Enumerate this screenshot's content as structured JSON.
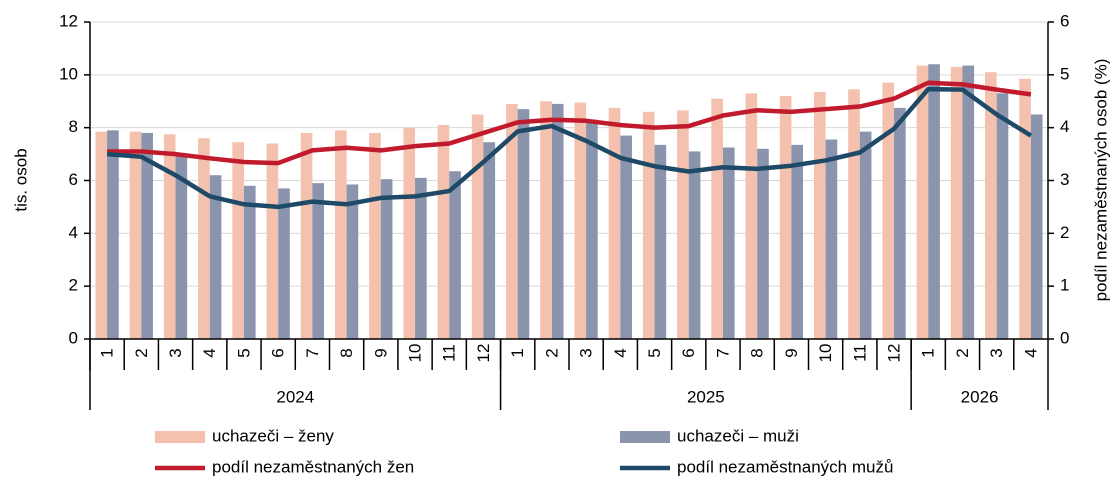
{
  "chart_data": {
    "type": "combo",
    "y_label": "tis. osob",
    "y2_label": "podíl nezaměstnaných osob (%)",
    "categories": [
      "1",
      "2",
      "3",
      "4",
      "5",
      "6",
      "7",
      "8",
      "9",
      "10",
      "11",
      "12",
      "1",
      "2",
      "3",
      "4",
      "5",
      "6",
      "7",
      "8",
      "9",
      "10",
      "11",
      "12",
      "1",
      "2",
      "3",
      "4"
    ],
    "category_groups": [
      {
        "label": "2024",
        "size": 12
      },
      {
        "label": "2025",
        "size": 12
      },
      {
        "label": "2026",
        "size": 4
      }
    ],
    "ylim": [
      0,
      12
    ],
    "yticks": [
      0,
      2,
      4,
      6,
      8,
      10,
      12
    ],
    "y2lim": [
      0,
      6
    ],
    "y2ticks": [
      0,
      1,
      2,
      3,
      4,
      5,
      6
    ],
    "grid": true,
    "legend": "bottom",
    "series": [
      {
        "name": "uchazeči – ženy",
        "type": "bar",
        "color": "#f3c1ad",
        "values": [
          7.85,
          7.85,
          7.75,
          7.6,
          7.45,
          7.4,
          7.8,
          7.9,
          7.8,
          8.0,
          8.1,
          8.5,
          8.9,
          9.0,
          8.95,
          8.75,
          8.6,
          8.65,
          9.1,
          9.3,
          9.2,
          9.35,
          9.45,
          9.7,
          10.35,
          10.3,
          10.1,
          9.85
        ]
      },
      {
        "name": "uchazeči – muži",
        "type": "bar",
        "color": "#8a94ad",
        "values": [
          7.9,
          7.8,
          7.0,
          6.2,
          5.8,
          5.7,
          5.9,
          5.85,
          6.05,
          6.1,
          6.35,
          7.45,
          8.7,
          8.9,
          8.3,
          7.7,
          7.35,
          7.1,
          7.25,
          7.2,
          7.35,
          7.55,
          7.85,
          8.75,
          10.4,
          10.35,
          9.3,
          8.5
        ]
      },
      {
        "name": "podíl nezaměstnaných žen",
        "type": "line",
        "axis": "y2",
        "color": "#c01a2c",
        "values": [
          3.55,
          3.55,
          3.5,
          3.42,
          3.35,
          3.33,
          3.57,
          3.62,
          3.57,
          3.65,
          3.7,
          3.9,
          4.1,
          4.15,
          4.13,
          4.05,
          4.0,
          4.03,
          4.23,
          4.33,
          4.3,
          4.35,
          4.4,
          4.55,
          4.85,
          4.82,
          4.72,
          4.63
        ]
      },
      {
        "name": "podíl nezaměstnaných mužů",
        "type": "line",
        "axis": "y2",
        "color": "#1e4a68",
        "values": [
          3.5,
          3.45,
          3.1,
          2.7,
          2.55,
          2.5,
          2.6,
          2.55,
          2.67,
          2.7,
          2.8,
          3.35,
          3.93,
          4.03,
          3.75,
          3.43,
          3.27,
          3.17,
          3.25,
          3.22,
          3.28,
          3.38,
          3.53,
          3.98,
          4.73,
          4.72,
          4.25,
          3.85
        ]
      }
    ]
  }
}
